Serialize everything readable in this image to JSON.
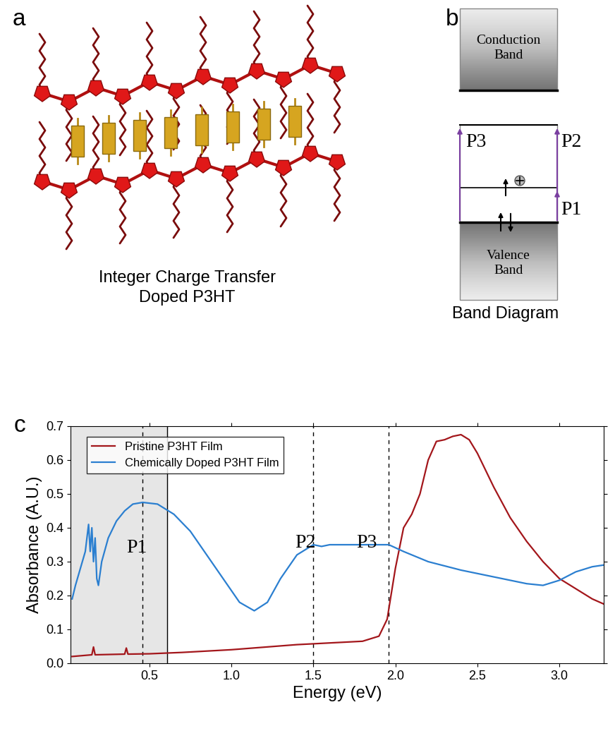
{
  "panel_a": {
    "letter": "a",
    "caption": "Integer Charge Transfer\nDoped P3HT"
  },
  "panel_b": {
    "letter": "b",
    "caption": "Band Diagram",
    "conduction_band": "Conduction\nBand",
    "valence_band": "Valence\nBand",
    "transitions": {
      "left": "P3",
      "right_upper": "P2",
      "right_lower": "P1"
    }
  },
  "chart_data": {
    "panel_letter": "c",
    "type": "line",
    "x_label": "Energy (eV)",
    "y_label": "Absorbance (A.U.)",
    "xlim": [
      0.02,
      3.27
    ],
    "ylim": [
      0,
      0.7
    ],
    "xticks": [
      {
        "value": 0.5,
        "label": "0.5"
      },
      {
        "value": 1.0,
        "label": "1.0"
      },
      {
        "value": 1.5,
        "label": "1.5"
      },
      {
        "value": 2.0,
        "label": "2.0"
      },
      {
        "value": 2.5,
        "label": "2.5"
      },
      {
        "value": 3.0,
        "label": "3.0"
      }
    ],
    "yticks": [
      {
        "value": 0.0,
        "label": "0.0"
      },
      {
        "value": 0.1,
        "label": "0.1"
      },
      {
        "value": 0.2,
        "label": "0.2"
      },
      {
        "value": 0.3,
        "label": "0.3"
      },
      {
        "value": 0.4,
        "label": "0.4"
      },
      {
        "value": 0.5,
        "label": "0.5"
      },
      {
        "value": 0.6,
        "label": "0.6"
      },
      {
        "value": 0.7,
        "label": "0.7"
      }
    ],
    "legend": "upper left",
    "grid": false,
    "shaded_region": [
      0.02,
      0.61
    ],
    "reference_lines": [
      0.46,
      1.5,
      1.96
    ],
    "annotations": [
      {
        "text": "P1",
        "x": 0.36,
        "y": 0.34
      },
      {
        "text": "P2",
        "x": 1.39,
        "y": 0.355
      },
      {
        "text": "P3",
        "x": 1.76,
        "y": 0.355
      }
    ],
    "series": [
      {
        "name": "Pristine P3HT Film",
        "color": "#a3161b",
        "line_style": "solid",
        "x": [
          0.03,
          0.15,
          0.16,
          0.17,
          0.35,
          0.36,
          0.37,
          0.5,
          0.7,
          1.0,
          1.4,
          1.8,
          1.9,
          1.95,
          2.0,
          2.05,
          2.1,
          2.15,
          2.2,
          2.25,
          2.3,
          2.35,
          2.4,
          2.45,
          2.5,
          2.6,
          2.7,
          2.8,
          2.9,
          3.0,
          3.1,
          3.2,
          3.27
        ],
        "values": [
          0.02,
          0.025,
          0.048,
          0.025,
          0.027,
          0.045,
          0.027,
          0.028,
          0.032,
          0.04,
          0.055,
          0.065,
          0.08,
          0.13,
          0.28,
          0.4,
          0.44,
          0.5,
          0.6,
          0.655,
          0.66,
          0.67,
          0.675,
          0.66,
          0.62,
          0.52,
          0.43,
          0.36,
          0.3,
          0.25,
          0.22,
          0.19,
          0.175
        ]
      },
      {
        "name": "Chemically Doped P3HT Film",
        "color": "#2b7fd0",
        "line_style": "solid",
        "x": [
          0.03,
          0.05,
          0.08,
          0.11,
          0.13,
          0.14,
          0.15,
          0.16,
          0.17,
          0.18,
          0.19,
          0.21,
          0.25,
          0.3,
          0.35,
          0.4,
          0.46,
          0.55,
          0.65,
          0.75,
          0.85,
          0.95,
          1.05,
          1.14,
          1.22,
          1.3,
          1.4,
          1.5,
          1.55,
          1.6,
          1.8,
          1.96,
          2.05,
          2.2,
          2.4,
          2.6,
          2.8,
          2.9,
          3.0,
          3.1,
          3.2,
          3.27
        ],
        "values": [
          0.19,
          0.23,
          0.28,
          0.33,
          0.41,
          0.33,
          0.4,
          0.3,
          0.37,
          0.25,
          0.23,
          0.3,
          0.37,
          0.42,
          0.45,
          0.47,
          0.475,
          0.47,
          0.44,
          0.39,
          0.32,
          0.25,
          0.18,
          0.155,
          0.18,
          0.25,
          0.32,
          0.35,
          0.345,
          0.35,
          0.35,
          0.35,
          0.33,
          0.3,
          0.275,
          0.255,
          0.235,
          0.23,
          0.245,
          0.27,
          0.285,
          0.29
        ]
      }
    ]
  }
}
